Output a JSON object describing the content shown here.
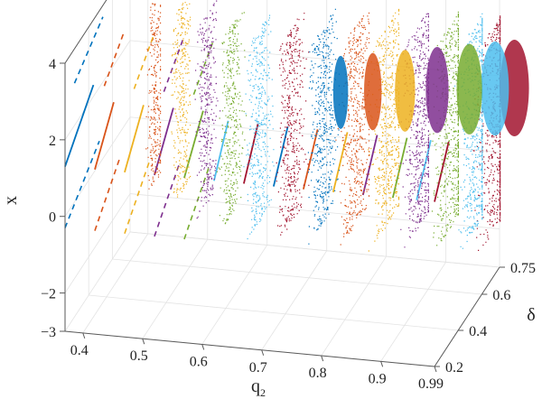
{
  "chart_data": {
    "type": "scatter",
    "title": "",
    "xlabel": "q",
    "xlabel_subscript": "2",
    "ylabel": "δ",
    "zlabel": "x",
    "xlim": [
      0.37,
      0.99
    ],
    "ylim": [
      0.2,
      0.75
    ],
    "zlim": [
      -3,
      4
    ],
    "x_ticks": [
      "0.4",
      "0.5",
      "0.6",
      "0.7",
      "0.8",
      "0.9",
      "0.99"
    ],
    "x_tick_values": [
      0.4,
      0.5,
      0.6,
      0.7,
      0.8,
      0.9,
      0.99
    ],
    "y_ticks": [
      "0.2",
      "0.4",
      "0.6",
      "0.75"
    ],
    "y_tick_values": [
      0.2,
      0.4,
      0.6,
      0.75
    ],
    "z_ticks": [
      "−3",
      "−2",
      "0",
      "2",
      "4"
    ],
    "z_tick_values": [
      -3,
      -2,
      0,
      2,
      4
    ],
    "grid": true,
    "legend": "none",
    "slices": [
      {
        "q2": 0.37,
        "color": "#0072bd",
        "period_one": [
          0.2,
          0.44
        ],
        "chaos_from": null
      },
      {
        "q2": 0.42,
        "color": "#d95319",
        "period_one": [
          0.2,
          0.36
        ],
        "chaos_from": 0.57
      },
      {
        "q2": 0.47,
        "color": "#edb120",
        "period_one": [
          0.2,
          0.36
        ],
        "chaos_from": 0.52
      },
      {
        "q2": 0.52,
        "color": "#7e2f8e",
        "period_one": [
          0.2,
          0.36
        ],
        "chaos_from": 0.46
      },
      {
        "q2": 0.57,
        "color": "#77ac30",
        "period_one": [
          0.2,
          0.36
        ],
        "chaos_from": 0.4
      },
      {
        "q2": 0.62,
        "color": "#4dbeee",
        "period_one": [
          0.2,
          0.32
        ],
        "chaos_from": 0.36
      },
      {
        "q2": 0.67,
        "color": "#a2142f",
        "period_one": [
          0.2,
          0.32
        ],
        "chaos_from": 0.36
      },
      {
        "q2": 0.72,
        "color": "#0072bd",
        "period_one": [
          0.2,
          0.32
        ],
        "chaos_from": 0.36
      },
      {
        "q2": 0.77,
        "color": "#d95319",
        "period_one": [
          0.2,
          0.32
        ],
        "chaos_from": 0.36
      },
      {
        "q2": 0.82,
        "color": "#edb120",
        "period_one": [
          0.2,
          0.32
        ],
        "chaos_from": 0.36
      },
      {
        "q2": 0.87,
        "color": "#7e2f8e",
        "period_one": [
          0.2,
          0.32
        ],
        "chaos_from": 0.36
      },
      {
        "q2": 0.92,
        "color": "#77ac30",
        "period_one": [
          0.2,
          0.32
        ],
        "chaos_from": 0.36
      },
      {
        "q2": 0.96,
        "color": "#4dbeee",
        "period_one": [
          0.2,
          0.32
        ],
        "chaos_from": 0.36
      },
      {
        "q2": 0.99,
        "color": "#a2142f",
        "period_one": [
          0.2,
          0.32
        ],
        "chaos_from": 0.36
      }
    ]
  }
}
